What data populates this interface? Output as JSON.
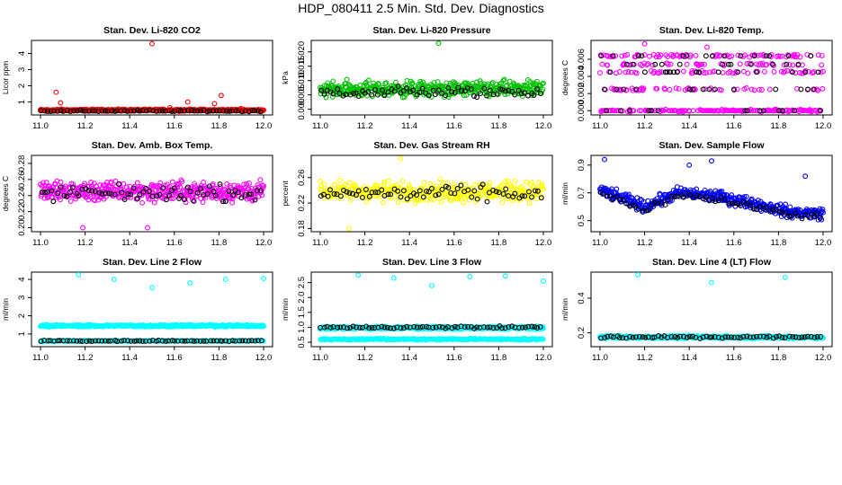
{
  "figure_title": "HDP_080411  2.5 Min. Std. Dev. Diagnostics",
  "chart_data": [
    {
      "type": "scatter",
      "title": "Stan. Dev. Li-820 CO2",
      "ylabel": "Licor ppm",
      "xlim": [
        11.0,
        12.0
      ],
      "ylim": [
        0.2,
        4.8
      ],
      "xticks": [
        "11.0",
        "11.2",
        "11.4",
        "11.6",
        "11.8",
        "12.0"
      ],
      "yticks": [
        1,
        2,
        3,
        4
      ],
      "ytick_labels": [
        "1",
        "2",
        "3",
        "4"
      ],
      "color": "#ff0000",
      "baseline": 0.5,
      "spread": 0.08,
      "spikes": [
        [
          11.07,
          1.6
        ],
        [
          11.09,
          0.95
        ],
        [
          11.5,
          4.6
        ],
        [
          11.58,
          0.65
        ],
        [
          11.66,
          1.0
        ],
        [
          11.78,
          0.9
        ],
        [
          11.81,
          1.4
        ],
        [
          11.9,
          0.6
        ]
      ],
      "black_baseline": 0.45,
      "black_spread": 0.06
    },
    {
      "type": "scatter",
      "title": "Stan. Dev. Li-820 Pressure",
      "ylabel": "kPa",
      "xlim": [
        11.0,
        12.0
      ],
      "ylim": [
        -0.002,
        0.024
      ],
      "xticks": [
        "11.0",
        "11.2",
        "11.4",
        "11.6",
        "11.8",
        "12.0"
      ],
      "yticks": [
        0.0,
        0.005,
        0.01,
        0.015,
        0.02
      ],
      "ytick_labels": [
        "0.000",
        "0.005",
        "0.010",
        "0.015",
        "0.020"
      ],
      "color": "#00c000",
      "baseline": 0.007,
      "spread": 0.004,
      "spikes": [
        [
          11.53,
          0.023
        ]
      ],
      "black_baseline": 0.006,
      "black_spread": 0.003
    },
    {
      "type": "scatter",
      "title": "Stan. Dev. Li-820 Temp.",
      "ylabel": "degrees C",
      "xlim": [
        11.0,
        12.0
      ],
      "ylim": [
        -0.0005,
        0.0082
      ],
      "xticks": [
        "11.0",
        "11.2",
        "11.4",
        "11.6",
        "11.8",
        "12.0"
      ],
      "yticks": [
        0.0,
        0.002,
        0.004,
        0.006
      ],
      "ytick_labels": [
        "0.000",
        "0.002",
        "0.004",
        "0.006"
      ],
      "color": "#ff00ff",
      "levels": [
        0.0,
        0.0025,
        0.0045,
        0.0054,
        0.0064
      ],
      "spikes": [
        [
          11.2,
          0.0078
        ],
        [
          11.48,
          0.0074
        ]
      ]
    },
    {
      "type": "scatter",
      "title": "Stan. Dev. Amb. Box Temp.",
      "ylabel": "degrees C",
      "xlim": [
        11.0,
        12.0
      ],
      "ylim": [
        0.195,
        0.29
      ],
      "xticks": [
        "11.0",
        "11.2",
        "11.4",
        "11.6",
        "11.8",
        "12.0"
      ],
      "yticks": [
        0.2,
        0.22,
        0.24,
        0.26,
        0.28
      ],
      "ytick_labels": [
        "0.20",
        "0.22",
        "0.24",
        "0.26",
        "0.28"
      ],
      "color": "#ff00ff",
      "baseline": 0.245,
      "spread": 0.018,
      "spikes": [
        [
          11.19,
          0.2
        ],
        [
          11.48,
          0.2
        ]
      ],
      "black_baseline": 0.243,
      "black_spread": 0.014
    },
    {
      "type": "scatter",
      "title": "Stan. Dev. Gas Stream RH",
      "ylabel": "percent",
      "xlim": [
        11.0,
        12.0
      ],
      "ylim": [
        0.175,
        0.295
      ],
      "xticks": [
        "11.0",
        "11.2",
        "11.4",
        "11.6",
        "11.8",
        "12.0"
      ],
      "yticks": [
        0.18,
        0.22,
        0.26
      ],
      "ytick_labels": [
        "0.18",
        "0.22",
        "0.26"
      ],
      "color": "#ffff00",
      "baseline": 0.238,
      "spread": 0.022,
      "spikes": [
        [
          11.13,
          0.18
        ],
        [
          11.36,
          0.29
        ]
      ],
      "black_baseline": 0.235,
      "black_spread": 0.018
    },
    {
      "type": "scatter",
      "title": "Stan. Dev. Sample Flow",
      "ylabel": "ml/min",
      "xlim": [
        11.0,
        12.0
      ],
      "ylim": [
        0.42,
        0.97
      ],
      "xticks": [
        "11.0",
        "11.2",
        "11.4",
        "11.6",
        "11.8",
        "12.0"
      ],
      "yticks": [
        0.5,
        0.7,
        0.9
      ],
      "ytick_labels": [
        "0.5",
        "0.7",
        "0.9"
      ],
      "color": "#0000ff",
      "trend": [
        [
          11.0,
          0.72
        ],
        [
          11.1,
          0.66
        ],
        [
          11.2,
          0.6
        ],
        [
          11.35,
          0.7
        ],
        [
          11.5,
          0.68
        ],
        [
          11.7,
          0.62
        ],
        [
          11.85,
          0.56
        ],
        [
          12.0,
          0.55
        ]
      ],
      "spread": 0.06,
      "spikes": [
        [
          11.02,
          0.94
        ],
        [
          11.5,
          0.93
        ],
        [
          11.4,
          0.9
        ],
        [
          11.92,
          0.82
        ]
      ],
      "black_spread": 0.04
    },
    {
      "type": "scatter",
      "title": "Stan. Dev. Line 2 Flow",
      "ylabel": "ml/min",
      "xlim": [
        11.0,
        12.0
      ],
      "ylim": [
        0.3,
        4.4
      ],
      "xticks": [
        "11.0",
        "11.2",
        "11.4",
        "11.6",
        "11.8",
        "12.0"
      ],
      "yticks": [
        1,
        2,
        3,
        4
      ],
      "ytick_labels": [
        "1",
        "2",
        "3",
        "4"
      ],
      "color": "#00ffff",
      "baseline": 1.45,
      "spread": 0.08,
      "baseline2": 0.62,
      "spread2": 0.05,
      "spikes": [
        [
          11.17,
          4.3
        ],
        [
          11.33,
          4.0
        ],
        [
          11.5,
          3.55
        ],
        [
          11.67,
          3.8
        ],
        [
          11.83,
          4.0
        ],
        [
          12.0,
          4.05
        ]
      ],
      "black_baseline": 0.62,
      "black_spread": 0.05
    },
    {
      "type": "scatter",
      "title": "Stan. Dev. Line 3 Flow",
      "ylabel": "ml/min",
      "xlim": [
        11.0,
        12.0
      ],
      "ylim": [
        0.35,
        2.85
      ],
      "xticks": [
        "11.0",
        "11.2",
        "11.4",
        "11.6",
        "11.8",
        "12.0"
      ],
      "yticks": [
        0.5,
        1.0,
        1.5,
        2.0,
        2.5
      ],
      "ytick_labels": [
        "0.5",
        "1.0",
        "1.5",
        "2.0",
        "2.5"
      ],
      "color": "#00ffff",
      "baseline": 0.98,
      "spread": 0.07,
      "baseline2": 0.6,
      "spread2": 0.04,
      "spikes": [
        [
          11.17,
          2.75
        ],
        [
          11.33,
          2.65
        ],
        [
          11.5,
          2.4
        ],
        [
          11.67,
          2.7
        ],
        [
          11.83,
          2.72
        ],
        [
          12.0,
          2.55
        ]
      ],
      "black_baseline": 1.0,
      "black_spread": 0.06
    },
    {
      "type": "scatter",
      "title": "Stan. Dev. Line 4 (LT) Flow",
      "ylabel": "ml/min",
      "xlim": [
        11.0,
        12.0
      ],
      "ylim": [
        0.12,
        0.55
      ],
      "xticks": [
        "11.0",
        "11.2",
        "11.4",
        "11.6",
        "11.8",
        "12.0"
      ],
      "yticks": [
        0.2,
        0.4
      ],
      "ytick_labels": [
        "0.2",
        "0.4"
      ],
      "color": "#00ffff",
      "baseline": 0.175,
      "spread": 0.012,
      "spikes": [
        [
          11.17,
          0.54
        ],
        [
          11.5,
          0.49
        ],
        [
          11.83,
          0.52
        ]
      ],
      "black_baseline": 0.175,
      "black_spread": 0.012
    }
  ]
}
